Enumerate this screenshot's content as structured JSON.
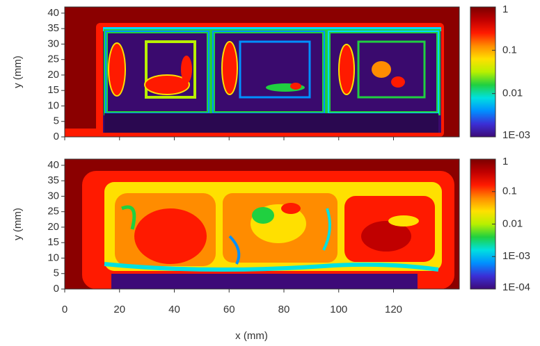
{
  "chart_data": [
    {
      "type": "heatmap",
      "y_label": "y (mm)",
      "show_xtick_labels": false,
      "xlim": [
        0,
        144
      ],
      "ylim": [
        0,
        42
      ],
      "xticks": [
        0,
        20,
        40,
        60,
        80,
        100,
        120
      ],
      "yticks": [
        0,
        5,
        10,
        15,
        20,
        25,
        30,
        35,
        40
      ],
      "colorbar": {
        "scale": "log",
        "clim": [
          0.001,
          1
        ],
        "ticks": [
          1,
          0.1,
          0.01,
          {
            "value": 0.001,
            "label": "1E-03"
          }
        ],
        "colormap": [
          "#3d0a78",
          "#3b2fd6",
          "#0090ff",
          "#00e0e0",
          "#20d040",
          "#b8f000",
          "#ffe000",
          "#ff8c00",
          "#ff1a00",
          "#c00000",
          "#7a0000"
        ]
      }
    },
    {
      "type": "heatmap",
      "y_label": "y (mm)",
      "x_label": "x (mm)",
      "show_xtick_labels": true,
      "xlim": [
        0,
        144
      ],
      "ylim": [
        0,
        42
      ],
      "xticks": [
        0,
        20,
        40,
        60,
        80,
        100,
        120
      ],
      "yticks": [
        0,
        5,
        10,
        15,
        20,
        25,
        30,
        35,
        40
      ],
      "colorbar": {
        "scale": "log",
        "clim": [
          0.0001,
          1
        ],
        "ticks": [
          1,
          0.1,
          0.01,
          {
            "value": 0.001,
            "label": "1E-03"
          },
          {
            "value": 0.0001,
            "label": "1E-04"
          }
        ],
        "colormap": [
          "#3d0a78",
          "#3b2fd6",
          "#0090ff",
          "#00e0e0",
          "#20d040",
          "#b8f000",
          "#ffe000",
          "#ff8c00",
          "#ff1a00",
          "#c00000",
          "#7a0000"
        ]
      }
    }
  ]
}
